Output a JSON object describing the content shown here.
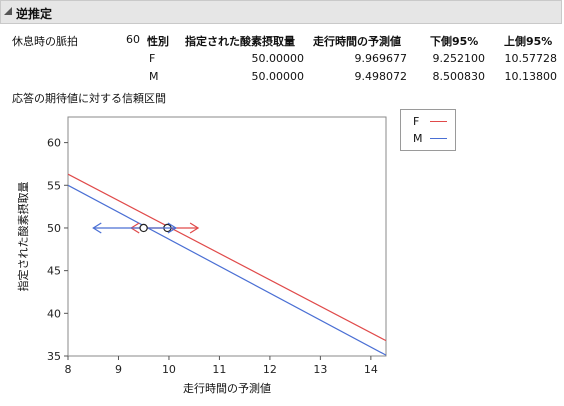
{
  "section": {
    "title": "逆推定"
  },
  "params": {
    "label": "休息時の脈拍",
    "value": "60"
  },
  "table": {
    "headers": [
      "性別",
      "指定された酸素摂取量",
      "走行時間の予測値",
      "下側95%",
      "上側95%"
    ],
    "rows": [
      [
        "F",
        "50.00000",
        "9.969677",
        "9.252100",
        "10.57728"
      ],
      [
        "M",
        "50.00000",
        "9.498072",
        "8.500830",
        "10.13800"
      ]
    ]
  },
  "chart_title": "応答の期待値に対する信頼区間",
  "chart_data": {
    "type": "line",
    "xlabel": "走行時間の予測値",
    "ylabel": "指定された酸素摂取量",
    "xlim": [
      8,
      14.3
    ],
    "ylim": [
      35,
      63
    ],
    "x_ticks": [
      "8",
      "9",
      "10",
      "11",
      "12",
      "13",
      "14"
    ],
    "y_ticks": [
      "35",
      "40",
      "45",
      "50",
      "55",
      "60"
    ],
    "grid": false,
    "legend_position": "right",
    "series": [
      {
        "name": "F",
        "color": "#e04a4a",
        "x": [
          8,
          14.3
        ],
        "y": [
          56.3,
          36.8
        ],
        "estimate": 9.969677,
        "lower": 9.2521,
        "upper": 10.57728,
        "level": 50
      },
      {
        "name": "M",
        "color": "#4a6fd4",
        "x": [
          8,
          14.3
        ],
        "y": [
          55.0,
          35.1
        ],
        "estimate": 9.498072,
        "lower": 8.50083,
        "upper": 10.138,
        "level": 50
      }
    ]
  }
}
